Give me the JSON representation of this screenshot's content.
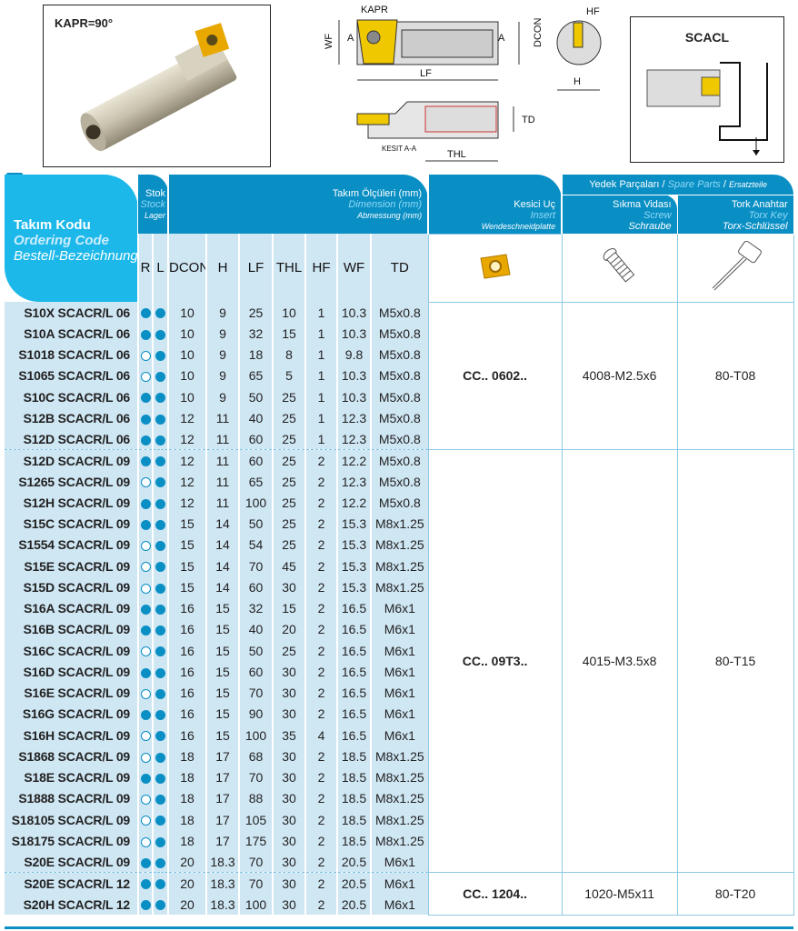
{
  "photo": {
    "kapr_label": "KAPR=90°"
  },
  "drawing": {
    "kapr": "KAPR",
    "wf": "WF",
    "a_left": "A",
    "a_right": "A",
    "dcon": "DCON",
    "lf": "LF",
    "hf": "HF",
    "h": "H",
    "td": "TD",
    "section": "KESIT A-A",
    "thl": "THL"
  },
  "scacl": {
    "title": "SCACL"
  },
  "header": {
    "code": {
      "tr": "Takım Kodu",
      "en": "Ordering Code",
      "de": "Bestell-Bezeichnung"
    },
    "stock": {
      "tr": "Stok",
      "en": "Stock",
      "de": "Lager"
    },
    "dims": {
      "tr": "Takım Ölçüleri (mm)",
      "en": "Dimension (mm)",
      "de": "Abmessung (mm)"
    },
    "insert": {
      "tr": "Kesici Uç",
      "en": "Insert",
      "de": "Wendeschneidplatte"
    },
    "spare": {
      "tr": "Yedek Parçaları",
      "en": "Spare Parts",
      "de": "Ersatzteile",
      "sep": "/"
    },
    "screw": {
      "tr": "Sıkma Vidası",
      "en": "Screw",
      "de": "Schraube"
    },
    "key": {
      "tr": "Tork Anahtar",
      "en": "Torx Key",
      "de": "Torx-Schlüssel"
    },
    "columns": [
      "R",
      "L",
      "DCON",
      "H",
      "LF",
      "THL",
      "HF",
      "WF",
      "TD"
    ]
  },
  "colors": {
    "header_dark": "#0a8fc4",
    "header_light": "#1cb8ea",
    "row_bg": "#cfe6f3",
    "insert_gold": "#e8a800"
  },
  "stock_legend": {
    "filled": "in stock",
    "open": "not in stock"
  },
  "groups": [
    {
      "insert": "CC.. 0602..",
      "screw": "4008-M2.5x6",
      "key": "80-T08",
      "rows": [
        {
          "code": "S10X SCACR/L 06",
          "r": true,
          "l": true,
          "dcon": "10",
          "h": "9",
          "lf": "25",
          "thl": "10",
          "hf": "1",
          "wf": "10.3",
          "td": "M5x0.8"
        },
        {
          "code": "S10A SCACR/L 06",
          "r": true,
          "l": true,
          "dcon": "10",
          "h": "9",
          "lf": "32",
          "thl": "15",
          "hf": "1",
          "wf": "10.3",
          "td": "M5x0.8"
        },
        {
          "code": "S1018 SCACR/L  06",
          "r": false,
          "l": true,
          "dcon": "10",
          "h": "9",
          "lf": "18",
          "thl": "8",
          "hf": "1",
          "wf": "9.8",
          "td": "M5x0.8"
        },
        {
          "code": "S1065 SCACR/L 06",
          "r": false,
          "l": true,
          "dcon": "10",
          "h": "9",
          "lf": "65",
          "thl": "5",
          "hf": "1",
          "wf": "10.3",
          "td": "M5x0.8"
        },
        {
          "code": "S10C SCACR/L 06",
          "r": true,
          "l": true,
          "dcon": "10",
          "h": "9",
          "lf": "50",
          "thl": "25",
          "hf": "1",
          "wf": "10.3",
          "td": "M5x0.8"
        },
        {
          "code": "S12B SCACR/L 06",
          "r": true,
          "l": true,
          "dcon": "12",
          "h": "11",
          "lf": "40",
          "thl": "25",
          "hf": "1",
          "wf": "12.3",
          "td": "M5x0.8"
        },
        {
          "code": "S12D SCACR/L 06",
          "r": true,
          "l": true,
          "dcon": "12",
          "h": "11",
          "lf": "60",
          "thl": "25",
          "hf": "1",
          "wf": "12.3",
          "td": "M5x0.8"
        }
      ]
    },
    {
      "insert": "CC.. 09T3..",
      "screw": "4015-M3.5x8",
      "key": "80-T15",
      "rows": [
        {
          "code": "S12D SCACR/L 09",
          "r": true,
          "l": true,
          "dcon": "12",
          "h": "11",
          "lf": "60",
          "thl": "25",
          "hf": "2",
          "wf": "12.2",
          "td": "M5x0.8"
        },
        {
          "code": "S1265 SCACR/L 09",
          "r": false,
          "l": true,
          "dcon": "12",
          "h": "11",
          "lf": "65",
          "thl": "25",
          "hf": "2",
          "wf": "12.3",
          "td": "M5x0.8"
        },
        {
          "code": "S12H SCACR/L 09",
          "r": true,
          "l": true,
          "dcon": "12",
          "h": "11",
          "lf": "100",
          "thl": "25",
          "hf": "2",
          "wf": "12.2",
          "td": "M5x0.8"
        },
        {
          "code": "S15C SCACR/L 09",
          "r": true,
          "l": true,
          "dcon": "15",
          "h": "14",
          "lf": "50",
          "thl": "25",
          "hf": "2",
          "wf": "15.3",
          "td": "M8x1.25"
        },
        {
          "code": "S1554 SCACR/L 09",
          "r": false,
          "l": true,
          "dcon": "15",
          "h": "14",
          "lf": "54",
          "thl": "25",
          "hf": "2",
          "wf": "15.3",
          "td": "M8x1.25"
        },
        {
          "code": "S15E SCACR/L 09",
          "r": false,
          "l": true,
          "dcon": "15",
          "h": "14",
          "lf": "70",
          "thl": "45",
          "hf": "2",
          "wf": "15.3",
          "td": "M8x1.25"
        },
        {
          "code": "S15D SCACR/L 09",
          "r": false,
          "l": true,
          "dcon": "15",
          "h": "14",
          "lf": "60",
          "thl": "30",
          "hf": "2",
          "wf": "15.3",
          "td": "M8x1.25"
        },
        {
          "code": "S16A SCACR/L 09",
          "r": true,
          "l": true,
          "dcon": "16",
          "h": "15",
          "lf": "32",
          "thl": "15",
          "hf": "2",
          "wf": "16.5",
          "td": "M6x1"
        },
        {
          "code": "S16B SCACR/L 09",
          "r": true,
          "l": true,
          "dcon": "16",
          "h": "15",
          "lf": "40",
          "thl": "20",
          "hf": "2",
          "wf": "16.5",
          "td": "M6x1"
        },
        {
          "code": "S16C SCACR/L 09",
          "r": false,
          "l": true,
          "dcon": "16",
          "h": "15",
          "lf": "50",
          "thl": "25",
          "hf": "2",
          "wf": "16.5",
          "td": "M6x1"
        },
        {
          "code": "S16D SCACR/L 09",
          "r": true,
          "l": true,
          "dcon": "16",
          "h": "15",
          "lf": "60",
          "thl": "30",
          "hf": "2",
          "wf": "16.5",
          "td": "M6x1"
        },
        {
          "code": "S16E SCACR/L 09",
          "r": false,
          "l": true,
          "dcon": "16",
          "h": "15",
          "lf": "70",
          "thl": "30",
          "hf": "2",
          "wf": "16.5",
          "td": "M6x1"
        },
        {
          "code": "S16G SCACR/L 09",
          "r": true,
          "l": true,
          "dcon": "16",
          "h": "15",
          "lf": "90",
          "thl": "30",
          "hf": "2",
          "wf": "16.5",
          "td": "M6x1"
        },
        {
          "code": "S16H SCACR/L 09",
          "r": false,
          "l": true,
          "dcon": "16",
          "h": "15",
          "lf": "100",
          "thl": "35",
          "hf": "4",
          "wf": "16.5",
          "td": "M6x1"
        },
        {
          "code": "S1868 SCACR/L 09",
          "r": false,
          "l": true,
          "dcon": "18",
          "h": "17",
          "lf": "68",
          "thl": "30",
          "hf": "2",
          "wf": "18.5",
          "td": "M8x1.25"
        },
        {
          "code": "S18E SCACR/L 09",
          "r": true,
          "l": true,
          "dcon": "18",
          "h": "17",
          "lf": "70",
          "thl": "30",
          "hf": "2",
          "wf": "18.5",
          "td": "M8x1.25"
        },
        {
          "code": "S1888 SCACR/L 09",
          "r": false,
          "l": true,
          "dcon": "18",
          "h": "17",
          "lf": "88",
          "thl": "30",
          "hf": "2",
          "wf": "18.5",
          "td": "M8x1.25"
        },
        {
          "code": "S18105 SCACR/L 09",
          "r": false,
          "l": true,
          "dcon": "18",
          "h": "17",
          "lf": "105",
          "thl": "30",
          "hf": "2",
          "wf": "18.5",
          "td": "M8x1.25"
        },
        {
          "code": "S18175 SCACR/L 09",
          "r": false,
          "l": true,
          "dcon": "18",
          "h": "17",
          "lf": "175",
          "thl": "30",
          "hf": "2",
          "wf": "18.5",
          "td": "M8x1.25"
        },
        {
          "code": "S20E SCACR/L 09",
          "r": true,
          "l": true,
          "dcon": "20",
          "h": "18.3",
          "lf": "70",
          "thl": "30",
          "hf": "2",
          "wf": "20.5",
          "td": "M6x1"
        }
      ]
    },
    {
      "insert": "CC.. 1204..",
      "screw": "1020-M5x11",
      "key": "80-T20",
      "rows": [
        {
          "code": "S20E SCACR/L 12",
          "r": true,
          "l": true,
          "dcon": "20",
          "h": "18.3",
          "lf": "70",
          "thl": "30",
          "hf": "2",
          "wf": "20.5",
          "td": "M6x1"
        },
        {
          "code": "S20H SCACR/L 12",
          "r": true,
          "l": true,
          "dcon": "20",
          "h": "18.3",
          "lf": "100",
          "thl": "30",
          "hf": "2",
          "wf": "20.5",
          "td": "M6x1"
        }
      ]
    }
  ]
}
